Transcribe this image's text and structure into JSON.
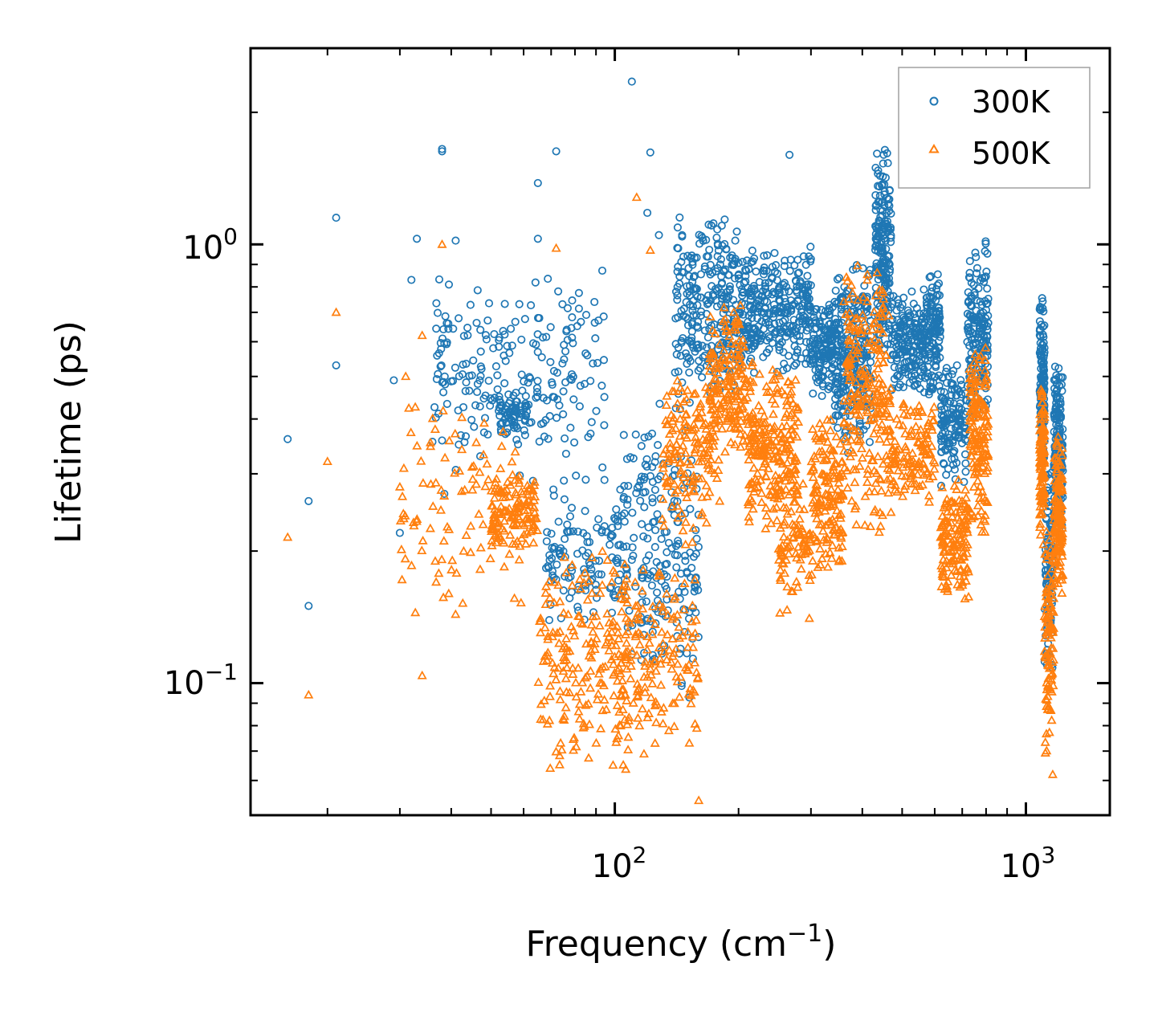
{
  "chart_data": {
    "type": "scatter",
    "xscale": "log",
    "yscale": "log",
    "xlabel": "Frequency (cm",
    "xlabel_sup": "−1",
    "xlabel_end": ")",
    "ylabel": "Lifetime (ps)",
    "xlim": [
      13,
      1600
    ],
    "ylim": [
      0.05,
      2.8
    ],
    "xticks": [
      {
        "value": 100,
        "base": "10",
        "exp": "2"
      },
      {
        "value": 1000,
        "base": "10",
        "exp": "3"
      }
    ],
    "yticks": [
      {
        "value": 1,
        "base": "10",
        "exp": "0"
      },
      {
        "value": 0.1,
        "base": "10",
        "exp": "−1"
      }
    ],
    "legend": {
      "location": "top-right"
    },
    "series": [
      {
        "name": "300K",
        "color": "#1f77b4",
        "marker": "circle",
        "seed": 11,
        "explicit_points": [
          [
            16,
            0.36
          ],
          [
            18,
            0.26
          ],
          [
            18,
            0.15
          ],
          [
            21,
            1.15
          ],
          [
            21,
            0.53
          ],
          [
            33,
            1.03
          ],
          [
            38,
            1.65
          ],
          [
            38,
            1.63
          ],
          [
            41,
            1.02
          ],
          [
            72,
            1.63
          ],
          [
            65,
            1.38
          ],
          [
            65,
            1.03
          ],
          [
            110,
            2.35
          ],
          [
            122,
            1.62
          ],
          [
            128,
            1.05
          ],
          [
            266,
            1.6
          ],
          [
            32,
            0.83
          ],
          [
            30,
            0.22
          ],
          [
            29,
            0.49
          ],
          [
            120,
            1.18
          ]
        ],
        "clusters": [
          {
            "x": [
              36,
              95
            ],
            "y": [
              0.26,
              0.9
            ],
            "n": 230
          },
          {
            "x": [
              52,
              62
            ],
            "y": [
              0.36,
              0.47
            ],
            "n": 60
          },
          {
            "x": [
              68,
              105
            ],
            "y": [
              0.13,
              0.3
            ],
            "n": 120
          },
          {
            "x": [
              105,
              160
            ],
            "y": [
              0.09,
              0.45
            ],
            "n": 210
          },
          {
            "x": [
              140,
              200
            ],
            "y": [
              0.42,
              1.2
            ],
            "n": 260
          },
          {
            "x": [
              200,
              300
            ],
            "y": [
              0.5,
              1.0
            ],
            "n": 320
          },
          {
            "x": [
              300,
              340
            ],
            "y": [
              0.45,
              0.75
            ],
            "n": 130
          },
          {
            "x": [
              340,
              420
            ],
            "y": [
              0.33,
              0.95
            ],
            "n": 260
          },
          {
            "x": [
              430,
              470
            ],
            "y": [
              0.55,
              1.7
            ],
            "n": 190
          },
          {
            "x": [
              470,
              580
            ],
            "y": [
              0.45,
              0.8
            ],
            "n": 200
          },
          {
            "x": [
              580,
              620
            ],
            "y": [
              0.42,
              0.92
            ],
            "n": 100
          },
          {
            "x": [
              620,
              720
            ],
            "y": [
              0.28,
              0.55
            ],
            "n": 140
          },
          {
            "x": [
              720,
              810
            ],
            "y": [
              0.38,
              1.05
            ],
            "n": 170
          },
          {
            "x": [
              1080,
              1110
            ],
            "y": [
              0.3,
              0.8
            ],
            "n": 140
          },
          {
            "x": [
              1110,
              1160
            ],
            "y": [
              0.09,
              0.35
            ],
            "n": 90
          },
          {
            "x": [
              1170,
              1230
            ],
            "y": [
              0.2,
              0.55
            ],
            "n": 170
          }
        ]
      },
      {
        "name": "500K",
        "color": "#ff7f0e",
        "marker": "triangle",
        "seed": 29,
        "explicit_points": [
          [
            16,
            0.215
          ],
          [
            18,
            0.094
          ],
          [
            20,
            0.32
          ],
          [
            21,
            0.7
          ],
          [
            30,
            0.28
          ],
          [
            34,
            0.104
          ],
          [
            38,
            1.0
          ],
          [
            72,
            0.98
          ],
          [
            113,
            1.28
          ],
          [
            122,
            0.97
          ],
          [
            160,
            0.054
          ],
          [
            34,
            0.62
          ],
          [
            31,
            0.5
          ]
        ],
        "clusters": [
          {
            "x": [
              30,
              60
            ],
            "y": [
              0.14,
              0.45
            ],
            "n": 110
          },
          {
            "x": [
              50,
              65
            ],
            "y": [
              0.2,
              0.3
            ],
            "n": 120
          },
          {
            "x": [
              65,
              110
            ],
            "y": [
              0.06,
              0.22
            ],
            "n": 200
          },
          {
            "x": [
              100,
              160
            ],
            "y": [
              0.064,
              0.2
            ],
            "n": 160
          },
          {
            "x": [
              130,
              180
            ],
            "y": [
              0.2,
              0.55
            ],
            "n": 160
          },
          {
            "x": [
              170,
              210
            ],
            "y": [
              0.3,
              0.75
            ],
            "n": 160
          },
          {
            "x": [
              210,
              280
            ],
            "y": [
              0.22,
              0.55
            ],
            "n": 240
          },
          {
            "x": [
              250,
              300
            ],
            "y": [
              0.14,
              0.3
            ],
            "n": 80
          },
          {
            "x": [
              300,
              360
            ],
            "y": [
              0.17,
              0.42
            ],
            "n": 150
          },
          {
            "x": [
              360,
              470
            ],
            "y": [
              0.2,
              0.95
            ],
            "n": 240
          },
          {
            "x": [
              470,
              600
            ],
            "y": [
              0.25,
              0.45
            ],
            "n": 120
          },
          {
            "x": [
              620,
              730
            ],
            "y": [
              0.15,
              0.3
            ],
            "n": 150
          },
          {
            "x": [
              730,
              810
            ],
            "y": [
              0.2,
              0.65
            ],
            "n": 150
          },
          {
            "x": [
              1080,
              1110
            ],
            "y": [
              0.2,
              0.5
            ],
            "n": 120
          },
          {
            "x": [
              1110,
              1170
            ],
            "y": [
              0.06,
              0.25
            ],
            "n": 100
          },
          {
            "x": [
              1170,
              1230
            ],
            "y": [
              0.15,
              0.4
            ],
            "n": 150
          }
        ]
      }
    ]
  }
}
